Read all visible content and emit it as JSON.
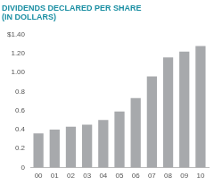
{
  "chart_data": {
    "type": "bar",
    "title": [
      "DIVIDENDS DECLARED PER SHARE",
      "(IN DOLLARS)"
    ],
    "categories": [
      "00",
      "01",
      "02",
      "03",
      "04",
      "05",
      "06",
      "07",
      "08",
      "09",
      "10"
    ],
    "values": [
      0.36,
      0.4,
      0.43,
      0.45,
      0.5,
      0.59,
      0.73,
      0.96,
      1.16,
      1.22,
      1.28
    ],
    "color": "#a7a9ac",
    "ylim": [
      0,
      1.4
    ],
    "yticks": [
      0,
      {
        "value": 0.2,
        "label": "0.2"
      },
      {
        "value": 0.4,
        "label": "0.4"
      },
      {
        "value": 0.6,
        "label": "0.6"
      },
      {
        "value": 0.8,
        "label": "0.8"
      },
      {
        "value": 1,
        "label": "1.00"
      },
      {
        "value": 1.2,
        "label": "1.20"
      },
      {
        "value": 1.4,
        "label": "$1.40"
      }
    ],
    "grid": false
  }
}
